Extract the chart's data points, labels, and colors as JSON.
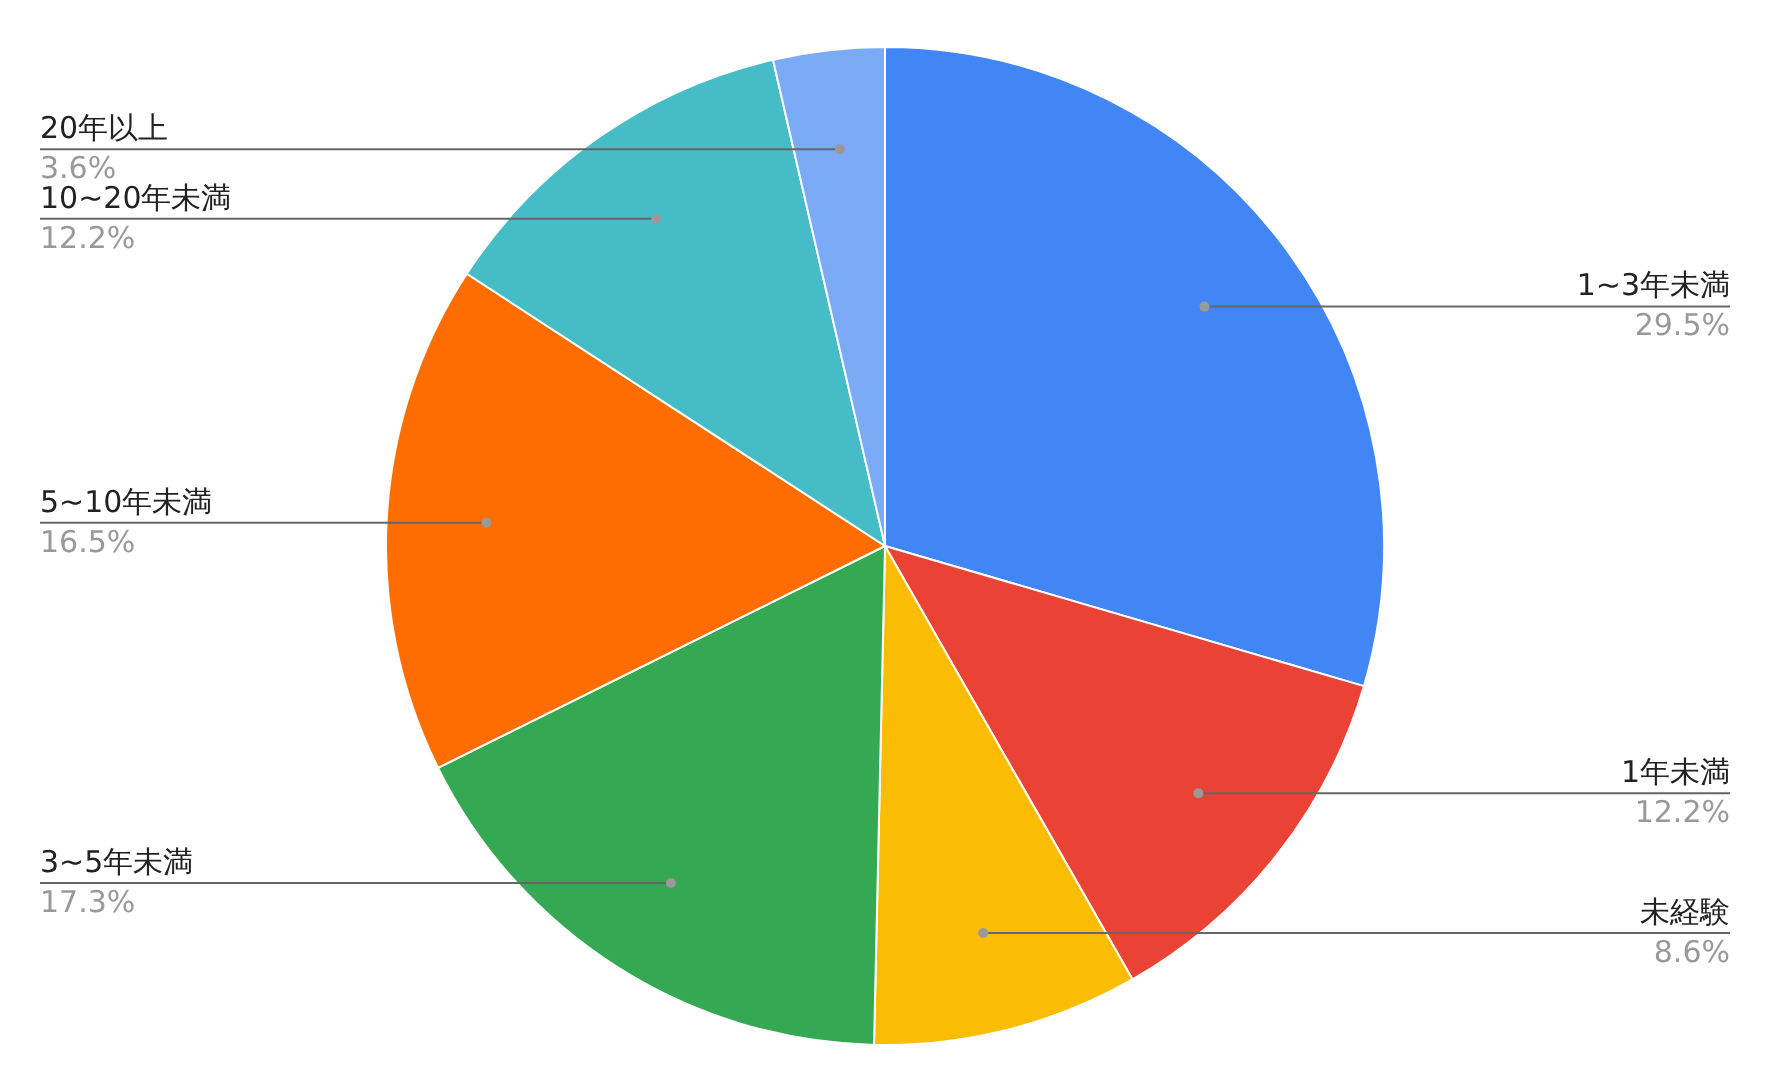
{
  "chart_data": {
    "type": "pie",
    "categories": [
      "1~3年未満",
      "1年未満",
      "未経験",
      "3~5年未満",
      "5~10年未満",
      "10~20年未満",
      "20年以上"
    ],
    "values": [
      29.5,
      12.2,
      8.6,
      17.3,
      16.5,
      12.2,
      3.6
    ],
    "colors": [
      "#4285f4",
      "#ea4335",
      "#fbbc04",
      "#34a853",
      "#ff6d01",
      "#46bdc6",
      "#7baaf7"
    ],
    "value_labels": [
      "29.5%",
      "12.2%",
      "8.6%",
      "17.3%",
      "16.5%",
      "12.2%",
      "3.6%"
    ],
    "legend": false
  }
}
